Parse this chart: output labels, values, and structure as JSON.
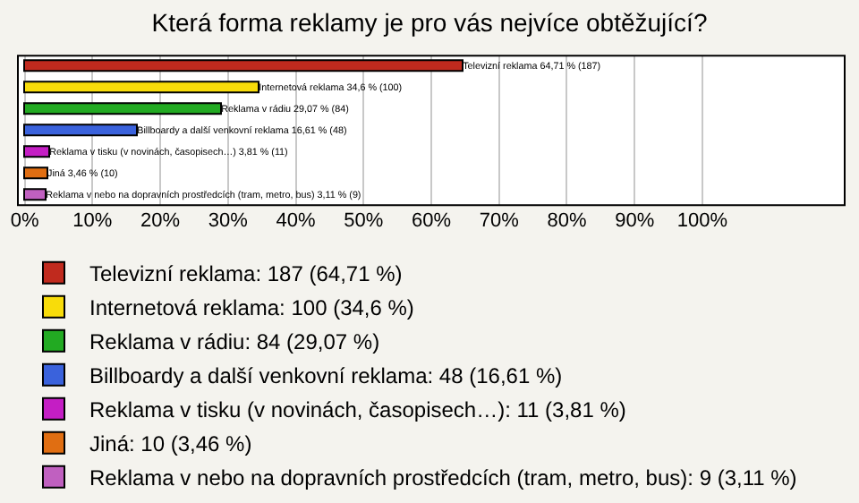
{
  "chart_data": {
    "type": "bar",
    "orientation": "horizontal",
    "title": "Která forma reklamy je pro vás nejvíce obtěžující?",
    "categories": [
      null,
      null,
      null,
      null,
      null,
      null,
      null
    ],
    "series": [
      {
        "name": "Televizní reklama: 187 (64,71 %)",
        "color": "#c02a1e",
        "values": [
          64.71,
          null,
          null,
          null,
          null,
          null,
          null
        ],
        "value_labels": [
          "Televizní reklama 64,71 % (187)",
          null,
          null,
          null,
          null,
          null,
          null
        ]
      },
      {
        "name": "Internetová reklama: 100 (34,6 %)",
        "color": "#f8dc0a",
        "values": [
          null,
          34.6,
          null,
          null,
          null,
          null,
          null
        ],
        "value_labels": [
          null,
          "Internetová reklama 34,6 % (100)",
          null,
          null,
          null,
          null,
          null
        ]
      },
      {
        "name": "Reklama v rádiu: 84 (29,07 %)",
        "color": "#22aa22",
        "values": [
          null,
          null,
          29.07,
          null,
          null,
          null,
          null
        ],
        "value_labels": [
          null,
          null,
          "Reklama v rádiu 29,07 % (84)",
          null,
          null,
          null,
          null
        ]
      },
      {
        "name": "Billboardy a další venkovní reklama: 48 (16,61 %)",
        "color": "#3a62dc",
        "values": [
          null,
          null,
          null,
          16.61,
          null,
          null,
          null
        ],
        "value_labels": [
          null,
          null,
          null,
          "Billboardy a další venkovní reklama 16,61 % (48)",
          null,
          null,
          null
        ]
      },
      {
        "name": "Reklama v tisku (v novinách, časopisech…): 11 (3,81 %)",
        "color": "#c41ec4",
        "values": [
          null,
          null,
          null,
          null,
          3.81,
          null,
          null
        ],
        "value_labels": [
          null,
          null,
          null,
          null,
          "Reklama v tisku (v novinách, časopisech…) 3,81 % (11)",
          null,
          null
        ]
      },
      {
        "name": "Jiná: 10 (3,46 %)",
        "color": "#e06e12",
        "values": [
          null,
          null,
          null,
          null,
          null,
          3.46,
          null
        ],
        "value_labels": [
          null,
          null,
          null,
          null,
          null,
          "Jiná 3,46 % (10)",
          null
        ]
      },
      {
        "name": "Reklama v nebo na dopravních prostředcích (tram, metro, bus): 9 (3,11 %)",
        "color": "#c060c0",
        "values": [
          null,
          null,
          null,
          null,
          null,
          null,
          3.11
        ],
        "value_labels": [
          null,
          null,
          null,
          null,
          null,
          null,
          "Reklama v nebo na dopravních prostředcích (tram, metro, bus) 3,11 % (9)"
        ]
      }
    ],
    "xlim": [
      -1,
      121
    ],
    "xticks": [
      {
        "value": 0,
        "label": "0%"
      },
      {
        "value": 10,
        "label": "10%"
      },
      {
        "value": 20,
        "label": "20%"
      },
      {
        "value": 30,
        "label": "30%"
      },
      {
        "value": 40,
        "label": "40%"
      },
      {
        "value": 50,
        "label": "50%"
      },
      {
        "value": 60,
        "label": "60%"
      },
      {
        "value": 70,
        "label": "70%"
      },
      {
        "value": 80,
        "label": "80%"
      },
      {
        "value": 90,
        "label": "90%"
      },
      {
        "value": 100,
        "label": "100%"
      }
    ],
    "grid": "x",
    "legend": "bottom",
    "tick_labels": "x"
  }
}
